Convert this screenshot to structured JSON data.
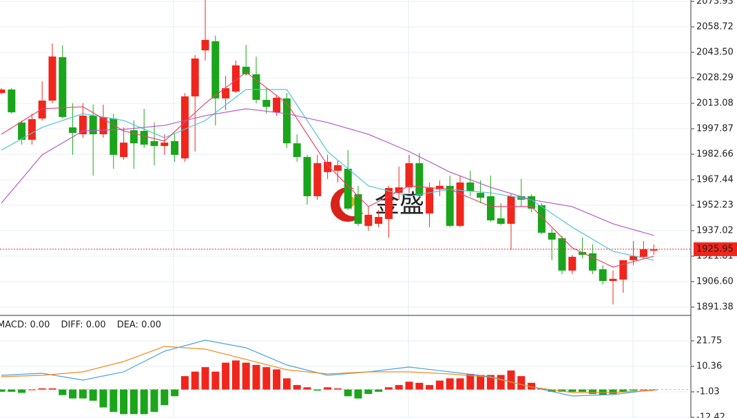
{
  "chart_data": [
    {
      "type": "candlestick",
      "up_color": "#f0261c",
      "down_color": "#1aa51a",
      "ylim": [
        1886.45,
        2074.75
      ],
      "yticks": [
        2073.93,
        2058.72,
        2043.5,
        2028.29,
        2013.08,
        1997.87,
        1982.66,
        1967.44,
        1952.23,
        1937.02,
        1921.81,
        1906.6,
        1891.38
      ],
      "ytick_labels": [
        "2073.93",
        "2058.72",
        "2043.50",
        "2028.29",
        "2013.08",
        "1997.87",
        "1982.66",
        "1967.44",
        "1952.23",
        "1937.02",
        "1921.81",
        "1906.60",
        "1891.38"
      ],
      "last_price": 1925.95,
      "watermark": "金盛",
      "open": [
        2019.2,
        2021.3,
        2001.6,
        1991.3,
        2004.0,
        2014.7,
        2040.6,
        1998.7,
        1994.6,
        2005.7,
        1994.6,
        2004.0,
        1981.0,
        1997.0,
        1996.6,
        1990.5,
        1987.6,
        1990.5,
        1980.2,
        2017.2,
        2044.7,
        2050.1,
        2016.0,
        2020.1,
        2034.9,
        2030.4,
        2015.1,
        2007.7,
        2016.0,
        1989.2,
        1981.0,
        1957.6,
        1972.0,
        1972.8,
        1974.0,
        1958.8,
        1939.9,
        1941.1,
        1944.0,
        1959.6,
        1962.9,
        1977.3,
        1947.3,
        1961.7,
        1963.8,
        1939.9,
        1965.8,
        1959.6,
        1957.6,
        1944.4,
        1941.1,
        1957.6,
        1957.6,
        1952.2,
        1935.8,
        1932.5,
        1913.2,
        1924.3,
        1923.5,
        1914.0,
        1907.0,
        1907.8,
        1919.4,
        1921.4,
        1925.1
      ],
      "high": [
        2022.1,
        2022.1,
        2002.8,
        2006.9,
        2026.2,
        2048.8,
        2047.6,
        2013.1,
        2013.1,
        2012.3,
        2012.3,
        2006.9,
        1998.7,
        2002.8,
        2009.8,
        2001.6,
        1994.6,
        1994.6,
        2019.2,
        2041.9,
        2074.75,
        2053.4,
        2029.5,
        2038.6,
        2048.0,
        2041.0,
        2022.1,
        2018.0,
        2019.2,
        1994.6,
        1982.3,
        1982.3,
        1982.3,
        1979.0,
        1985.1,
        1963.8,
        1951.4,
        1949.4,
        1963.8,
        1975.3,
        1982.3,
        1983.5,
        1965.8,
        1967.0,
        1969.9,
        1969.9,
        1972.8,
        1967.0,
        1969.9,
        1953.5,
        1958.8,
        1967.9,
        1958.8,
        1953.5,
        1938.3,
        1933.8,
        1922.6,
        1932.9,
        1928.8,
        1916.5,
        1913.2,
        1919.4,
        1930.9,
        1930.9,
        1928.8
      ],
      "low": [
        2018.4,
        2006.9,
        1988.4,
        1988.4,
        2002.8,
        2013.1,
        2004.0,
        1982.3,
        1992.5,
        1969.9,
        1992.5,
        1974.0,
        1979.4,
        1974.0,
        1986.4,
        1976.1,
        1982.3,
        1978.1,
        1978.1,
        1984.3,
        2038.6,
        1999.9,
        2009.0,
        2019.2,
        2029.5,
        2013.1,
        2006.9,
        2005.7,
        1986.4,
        1978.1,
        1952.7,
        1955.5,
        1967.9,
        1965.8,
        1949.4,
        1939.9,
        1937.0,
        1939.1,
        1932.9,
        1955.5,
        1959.6,
        1955.5,
        1939.1,
        1957.6,
        1939.1,
        1939.1,
        1957.6,
        1953.5,
        1942.4,
        1940.3,
        1925.5,
        1951.4,
        1948.1,
        1935.0,
        1919.4,
        1911.1,
        1911.1,
        1920.6,
        1911.1,
        1905.0,
        1893.0,
        1900.0,
        1916.5,
        1920.6,
        1922.6
      ],
      "close": [
        2021.3,
        2007.7,
        1991.3,
        2003.6,
        2014.7,
        2041.0,
        2004.9,
        1995.4,
        2005.7,
        1994.6,
        2004.9,
        1982.3,
        1989.6,
        1989.2,
        1988.4,
        1987.6,
        1989.6,
        1982.3,
        2017.2,
        2039.8,
        2050.9,
        2016.0,
        2022.1,
        2035.7,
        2030.4,
        2015.1,
        2011.0,
        2016.4,
        1989.2,
        1981.0,
        1957.6,
        1977.3,
        1978.1,
        1976.1,
        1950.2,
        1941.1,
        1946.5,
        1945.2,
        1962.5,
        1962.9,
        1977.3,
        1958.4,
        1962.5,
        1963.8,
        1939.9,
        1965.8,
        1960.5,
        1956.7,
        1943.2,
        1941.1,
        1957.6,
        1955.5,
        1950.2,
        1935.8,
        1931.7,
        1913.2,
        1921.4,
        1922.6,
        1913.2,
        1907.0,
        1908.3,
        1919.4,
        1921.8,
        1925.9,
        1925.9
      ],
      "lines": [
        {
          "color": "#4ec5d6",
          "x": [
            0,
            4,
            8,
            12,
            16,
            20,
            24,
            28,
            32,
            36,
            40,
            44,
            48,
            52,
            56,
            60,
            64
          ],
          "values": [
            1985.1,
            1998.7,
            2006.9,
            2002.8,
            1992.5,
            2002.8,
            2021.3,
            2021.3,
            1984.3,
            1963.8,
            1957.6,
            1961.7,
            1959.6,
            1955.5,
            1939.1,
            1924.7,
            1919.4
          ]
        },
        {
          "color": "#b45ac8",
          "x": [
            0,
            4,
            8,
            12,
            16,
            20,
            24,
            28,
            32,
            36,
            40,
            44,
            48,
            52,
            56,
            60,
            64
          ],
          "values": [
            1953.5,
            1982.3,
            1996.6,
            1997.5,
            1999.9,
            2005.7,
            2009.8,
            2006.9,
            2001.6,
            1994.6,
            1984.3,
            1972.0,
            1962.9,
            1955.5,
            1951.4,
            1941.1,
            1934.2
          ]
        },
        {
          "color": "#e8446a",
          "x": [
            0,
            4,
            8,
            12,
            16,
            20,
            24,
            28,
            32,
            36,
            40,
            44,
            48,
            52,
            56,
            60,
            64
          ],
          "values": [
            1994.6,
            2009.8,
            2011.0,
            1996.6,
            1990.5,
            2013.1,
            2031.6,
            2013.1,
            1976.1,
            1951.4,
            1963.8,
            1961.7,
            1951.4,
            1951.4,
            1926.8,
            1915.3,
            1921.8
          ]
        }
      ]
    },
    {
      "type": "macd",
      "legend": [
        {
          "text": "MACD: 0.00",
          "color": "#e8281c"
        },
        {
          "text": "DIFF: 0.00",
          "color": "#4aa3e0"
        },
        {
          "text": "DEA: 0.00",
          "color": "#f08a1c"
        }
      ],
      "ylim": [
        -12.73,
        33.13
      ],
      "yticks": [
        21.75,
        10.36,
        -1.03,
        -12.42
      ],
      "values": [
        -1,
        -1,
        -1.5,
        0,
        0.5,
        0.5,
        -2.5,
        -4,
        -4,
        -5,
        -8,
        -10,
        -11,
        -11,
        -11,
        -10,
        -7,
        -3,
        6,
        8,
        10,
        8,
        12,
        13,
        12,
        11,
        10,
        9,
        5,
        2,
        1,
        -0.5,
        1,
        0.5,
        -3,
        -4,
        -2,
        -1,
        1,
        2,
        3.5,
        3,
        2,
        4,
        5,
        5,
        7,
        6.5,
        6.5,
        6.5,
        8.5,
        6,
        3,
        0.5,
        -1,
        -1,
        -1,
        -1,
        -2,
        -2.5,
        -2,
        -1,
        -0.5,
        0,
        0
      ],
      "lines": [
        {
          "color": "#4aa3e0",
          "x": [
            0,
            4,
            8,
            12,
            16,
            20,
            24,
            28,
            32,
            36,
            40,
            44,
            48,
            52,
            56,
            60,
            64
          ],
          "values": [
            6.36,
            7.28,
            4.2,
            7.9,
            17.13,
            22.05,
            18.67,
            10.97,
            6.36,
            7.9,
            10.05,
            7.9,
            5.74,
            1.12,
            -2.88,
            -2.26,
            -0.11
          ]
        },
        {
          "color": "#f08a1c",
          "x": [
            0,
            4,
            8,
            12,
            16,
            20,
            24,
            28,
            32,
            36,
            40,
            44,
            48,
            52,
            56,
            60,
            64
          ],
          "values": [
            5.74,
            6.36,
            7.9,
            12.51,
            19.28,
            18.05,
            13.44,
            8.82,
            6.97,
            7.9,
            7.9,
            6.97,
            5.43,
            1.12,
            -1.34,
            -1.34,
            -0.41
          ]
        }
      ]
    }
  ]
}
